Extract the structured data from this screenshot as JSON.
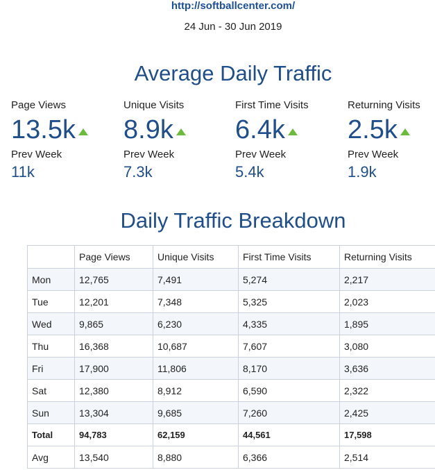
{
  "header": {
    "site_url": "http://softballcenter.com/",
    "date_range": "24 Jun - 30 Jun 2019"
  },
  "average_section": {
    "title": "Average Daily Traffic",
    "stats": [
      {
        "label": "Page Views",
        "value": "13.5k",
        "trend": "up",
        "prev_label": "Prev Week",
        "prev_value": "11k"
      },
      {
        "label": "Unique Visits",
        "value": "8.9k",
        "trend": "up",
        "prev_label": "Prev Week",
        "prev_value": "7.3k"
      },
      {
        "label": "First Time Visits",
        "value": "6.4k",
        "trend": "up",
        "prev_label": "Prev Week",
        "prev_value": "5.4k"
      },
      {
        "label": "Returning Visits",
        "value": "2.5k",
        "trend": "up",
        "prev_label": "Prev Week",
        "prev_value": "1.9k"
      }
    ],
    "trend_color": "#6cbb3c",
    "accent_color": "#1f4e8c"
  },
  "breakdown_section": {
    "title": "Daily Traffic Breakdown",
    "columns": [
      "",
      "Page Views",
      "Unique Visits",
      "First Time Visits",
      "Returning Visits"
    ],
    "rows": [
      [
        "Mon",
        "12,765",
        "7,491",
        "5,274",
        "2,217"
      ],
      [
        "Tue",
        "12,201",
        "7,348",
        "5,325",
        "2,023"
      ],
      [
        "Wed",
        "9,865",
        "6,230",
        "4,335",
        "1,895"
      ],
      [
        "Thu",
        "16,368",
        "10,687",
        "7,607",
        "3,080"
      ],
      [
        "Fri",
        "17,900",
        "11,806",
        "8,170",
        "3,636"
      ],
      [
        "Sat",
        "12,380",
        "8,912",
        "6,590",
        "2,322"
      ],
      [
        "Sun",
        "13,304",
        "9,685",
        "7,260",
        "2,425"
      ],
      [
        "Total",
        "94,783",
        "62,159",
        "44,561",
        "17,598"
      ],
      [
        "Avg",
        "13,540",
        "8,880",
        "6,366",
        "2,514"
      ]
    ]
  }
}
